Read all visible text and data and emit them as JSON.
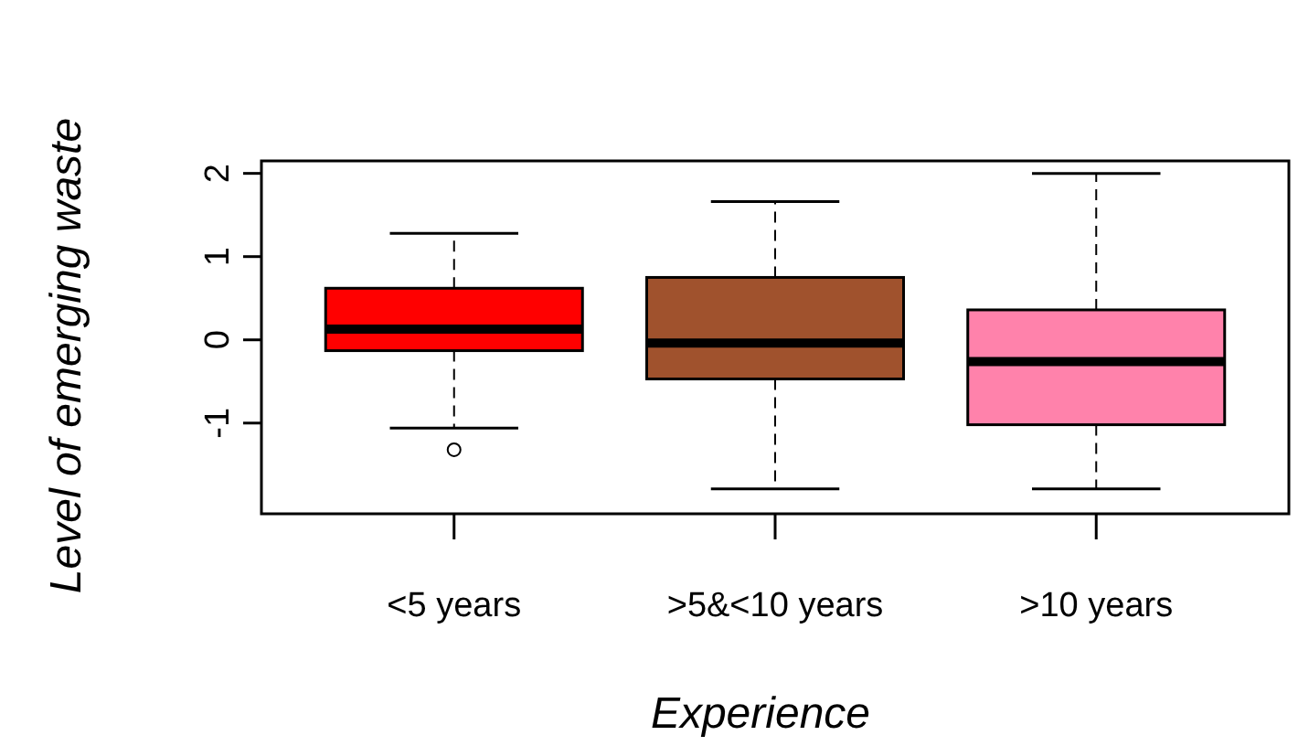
{
  "chart_data": {
    "type": "box",
    "xlabel": "Experience",
    "ylabel": "Level of emerging waste",
    "categories": [
      "<5 years",
      ">5&<10 years",
      ">10 years"
    ],
    "colors": [
      "#ff0000",
      "#a0522d",
      "#ff82ab"
    ],
    "boxes": [
      {
        "low": -1.06,
        "q1": -0.13,
        "median": 0.13,
        "q3": 0.62,
        "high": 1.28,
        "outliers": [
          -1.32
        ]
      },
      {
        "low": -1.79,
        "q1": -0.47,
        "median": -0.04,
        "q3": 0.75,
        "high": 1.66
      },
      {
        "low": -1.79,
        "q1": -1.02,
        "median": -0.26,
        "q3": 0.36,
        "high": 2
      }
    ],
    "ylim": [
      -2.09,
      2.15
    ],
    "yticks": [
      -1,
      0,
      1,
      2
    ]
  }
}
